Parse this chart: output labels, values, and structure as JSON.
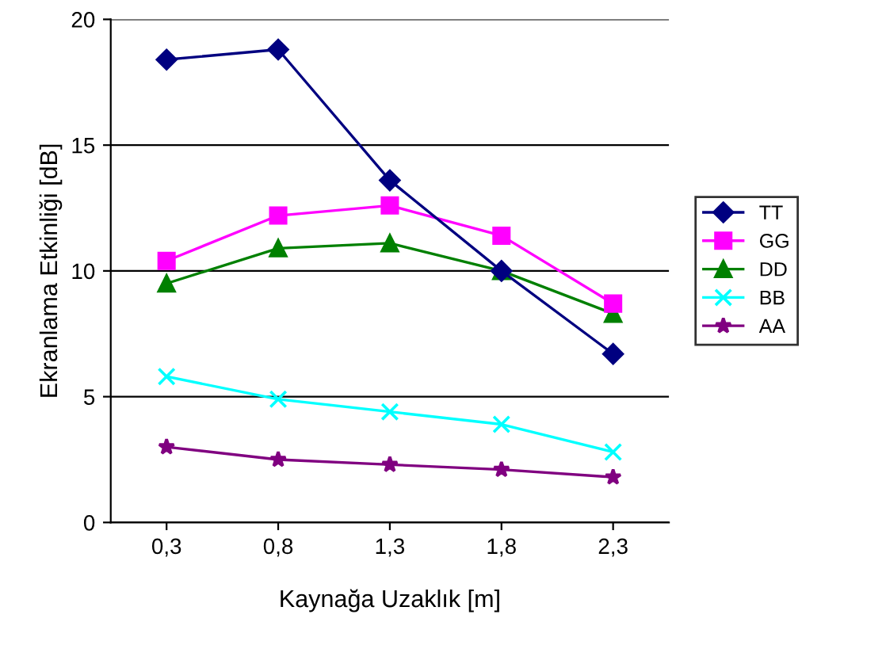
{
  "chart_data": {
    "type": "line",
    "xlabel": "Kaynağa Uzaklık [m]",
    "ylabel": "Ekranlama Etkinliği [dB]",
    "categories": [
      "0,3",
      "0,8",
      "1,3",
      "1,8",
      "2,3"
    ],
    "series": [
      {
        "name": "TT",
        "color": "#000080",
        "marker": "diamond",
        "values": [
          18.4,
          18.8,
          13.6,
          10.0,
          6.7
        ]
      },
      {
        "name": "GG",
        "color": "#ff00ff",
        "marker": "square",
        "values": [
          10.4,
          12.2,
          12.6,
          11.4,
          8.7
        ]
      },
      {
        "name": "DD",
        "color": "#008000",
        "marker": "triangle",
        "values": [
          9.5,
          10.9,
          11.1,
          10.0,
          8.3
        ]
      },
      {
        "name": "BB",
        "color": "#00ffff",
        "marker": "cross",
        "values": [
          5.8,
          4.9,
          4.4,
          3.9,
          2.8
        ]
      },
      {
        "name": "AA",
        "color": "#800080",
        "marker": "star",
        "values": [
          3.0,
          2.5,
          2.3,
          2.1,
          1.8
        ]
      }
    ],
    "ylim": [
      0,
      20
    ],
    "yticks": [
      0,
      5,
      10,
      15,
      20
    ],
    "grid": "y",
    "legend": "right"
  }
}
